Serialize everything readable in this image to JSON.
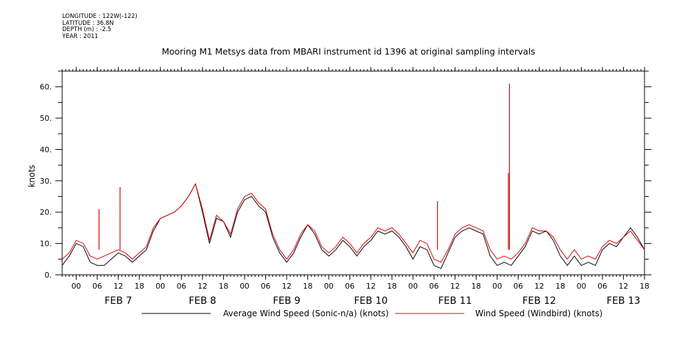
{
  "header": {
    "meta_lines": [
      "LONGITUDE : 122W(-122)",
      "LATITUDE : 36.8N",
      "DEPTH (m) : -2.5",
      "YEAR : 2011"
    ],
    "title": "Mooring M1 Metsys data from MBARI instrument id 1396 at original sampling intervals"
  },
  "chart_data": {
    "type": "line",
    "title": "Mooring M1 Metsys data from MBARI instrument id 1396 at original sampling intervals",
    "ylabel": "knots",
    "xlabel": "",
    "x_unit": "hours since 2011-02-06 20:00",
    "xlim": [
      0,
      166
    ],
    "ylim": [
      0,
      65
    ],
    "y_ticks": [
      0,
      10,
      20,
      30,
      40,
      50,
      60
    ],
    "y_tick_labels": [
      "0.",
      "10.",
      "20.",
      "30.",
      "40.",
      "50.",
      "60."
    ],
    "x_ticks": [
      4,
      10,
      16,
      22,
      28,
      34,
      40,
      46,
      52,
      58,
      64,
      70,
      76,
      82,
      88,
      94,
      100,
      106,
      112,
      118,
      124,
      130,
      136,
      142,
      148,
      154,
      160,
      166
    ],
    "x_tick_labels": [
      "00",
      "06",
      "12",
      "18",
      "00",
      "06",
      "12",
      "18",
      "00",
      "06",
      "12",
      "18",
      "00",
      "06",
      "12",
      "18",
      "00",
      "06",
      "12",
      "18",
      "00",
      "06",
      "12",
      "18",
      "00",
      "06",
      "12",
      "18"
    ],
    "day_labels": [
      {
        "label": "FEB  7",
        "x": 16
      },
      {
        "label": "FEB  8",
        "x": 40
      },
      {
        "label": "FEB  9",
        "x": 64
      },
      {
        "label": "FEB 10",
        "x": 88
      },
      {
        "label": "FEB 11",
        "x": 112
      },
      {
        "label": "FEB 12",
        "x": 136
      },
      {
        "label": "FEB 13",
        "x": 160
      }
    ],
    "grid": false,
    "legend_position": "bottom",
    "series": [
      {
        "name": "Average Wind Speed (Sonic-n/a) (knots)",
        "color": "#000000",
        "x": [
          0,
          2,
          4,
          6,
          8,
          10,
          12,
          14,
          16,
          18,
          20,
          22,
          24,
          26,
          28,
          30,
          32,
          34,
          36,
          38,
          40,
          42,
          44,
          46,
          48,
          50,
          52,
          54,
          56,
          58,
          60,
          62,
          64,
          66,
          68,
          70,
          72,
          74,
          76,
          78,
          80,
          82,
          84,
          86,
          88,
          90,
          92,
          94,
          96,
          98,
          100,
          102,
          104,
          106,
          108,
          110,
          112,
          114,
          116,
          118,
          120,
          122,
          124,
          126,
          128,
          130,
          132,
          134,
          136,
          138,
          140,
          142,
          144,
          146,
          148,
          150,
          152,
          154,
          156,
          158,
          160,
          162,
          164,
          166
        ],
        "y": [
          3,
          6,
          10,
          9,
          4,
          3,
          3,
          5,
          7,
          6,
          4,
          6,
          8,
          14,
          18,
          19,
          20,
          22,
          25,
          29,
          20,
          10,
          18,
          17,
          12,
          20,
          24,
          25,
          22,
          20,
          12,
          7,
          4,
          7,
          12,
          16,
          13,
          8,
          6,
          8,
          11,
          9,
          6,
          9,
          11,
          14,
          13,
          14,
          12,
          9,
          5,
          9,
          8,
          3,
          2,
          7,
          12,
          14,
          15,
          14,
          13,
          6,
          3,
          4,
          3,
          6,
          9,
          14,
          13,
          14,
          11,
          6,
          3,
          6,
          3,
          4,
          3,
          8,
          10,
          9,
          12,
          15,
          12,
          8
        ]
      },
      {
        "name": "Wind Speed (Windbird) (knots)",
        "color": "#dd0000",
        "x": [
          0,
          2,
          4,
          6,
          8,
          10,
          12,
          14,
          16,
          18,
          20,
          22,
          24,
          26,
          28,
          30,
          32,
          34,
          36,
          38,
          40,
          42,
          44,
          46,
          48,
          50,
          52,
          54,
          56,
          58,
          60,
          62,
          64,
          66,
          68,
          70,
          72,
          74,
          76,
          78,
          80,
          82,
          84,
          86,
          88,
          90,
          92,
          94,
          96,
          98,
          100,
          102,
          104,
          106,
          108,
          110,
          112,
          114,
          116,
          118,
          120,
          122,
          124,
          126,
          128,
          130,
          132,
          134,
          136,
          138,
          140,
          142,
          144,
          146,
          148,
          150,
          152,
          154,
          156,
          158,
          160,
          162,
          164,
          166
        ],
        "y": [
          5,
          7,
          11,
          10,
          6,
          5,
          6,
          7,
          8,
          7,
          5,
          7,
          9,
          15,
          18,
          19,
          20,
          22,
          25,
          29,
          21,
          11,
          19,
          17,
          13,
          21,
          25,
          26,
          23,
          21,
          13,
          8,
          5,
          8,
          13,
          16,
          14,
          9,
          7,
          9,
          12,
          10,
          7,
          10,
          12,
          15,
          14,
          15,
          13,
          10,
          7,
          11,
          10,
          5,
          4,
          8,
          13,
          15,
          16,
          15,
          14,
          8,
          5,
          6,
          5,
          7,
          10,
          15,
          14,
          14,
          12,
          8,
          5,
          8,
          5,
          6,
          5,
          9,
          11,
          10,
          12,
          14,
          11,
          8
        ],
        "spikes": [
          {
            "x": 10.5,
            "y": 21
          },
          {
            "x": 16.5,
            "y": 28
          },
          {
            "x": 107,
            "y": 23.5
          },
          {
            "x": 127.5,
            "y": 61
          },
          {
            "x": 127.2,
            "y": 32.5
          }
        ]
      }
    ]
  }
}
